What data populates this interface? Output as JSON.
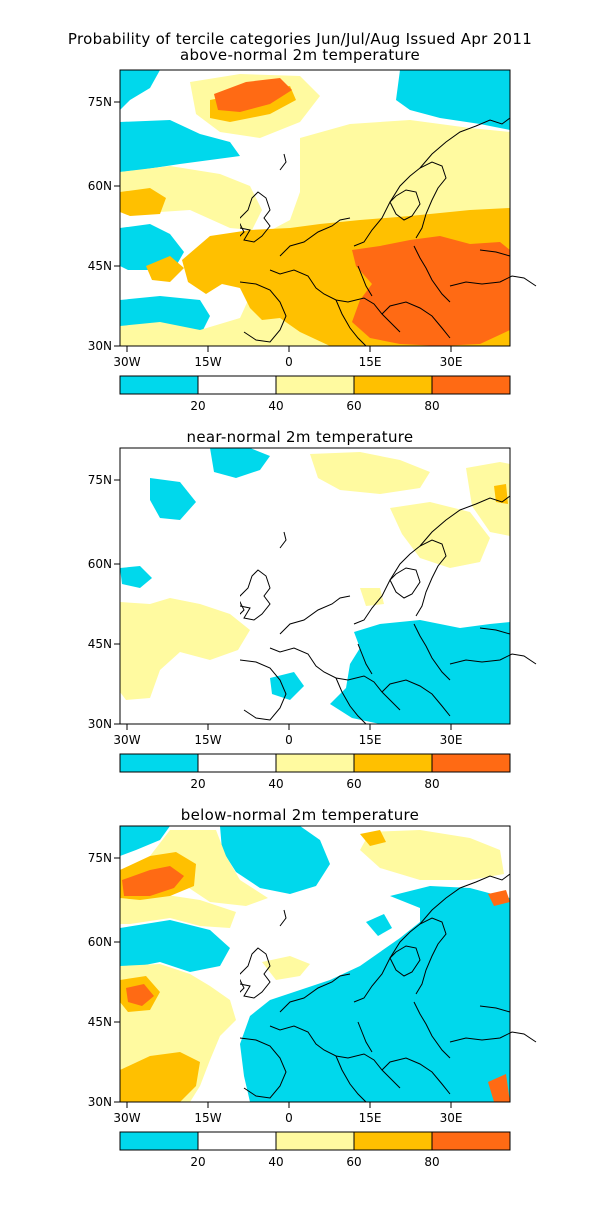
{
  "header": {
    "title_line1": "Probability of tercile categories Jun/Jul/Aug Issued Apr 2011",
    "title_line2": "above-normal 2m temperature"
  },
  "panels": [
    {
      "id": "above",
      "subtitle": "",
      "lat_labels": [
        "75N",
        "60N",
        "45N",
        "30N"
      ],
      "lon_labels": [
        "30W",
        "15W",
        "0",
        "15E",
        "30E"
      ],
      "dominant_category": "above-normal"
    },
    {
      "id": "near",
      "subtitle": "near-normal 2m temperature",
      "lat_labels": [
        "75N",
        "60N",
        "45N",
        "30N"
      ],
      "lon_labels": [
        "30W",
        "15W",
        "0",
        "15E",
        "30E"
      ],
      "dominant_category": "near-normal"
    },
    {
      "id": "below",
      "subtitle": "below-normal 2m temperature",
      "lat_labels": [
        "75N",
        "60N",
        "45N",
        "30N"
      ],
      "lon_labels": [
        "30W",
        "15W",
        "0",
        "15E",
        "30E"
      ],
      "dominant_category": "below-normal"
    }
  ],
  "colorbar": {
    "tick_labels": [
      "20",
      "40",
      "60",
      "80"
    ],
    "bins": [
      {
        "range": "0-20",
        "color": "#00d8ec"
      },
      {
        "range": "20-40",
        "color": "#ffffff"
      },
      {
        "range": "40-60",
        "color": "#fffaa0"
      },
      {
        "range": "60-80",
        "color": "#ffc000"
      },
      {
        "range": "80-100",
        "color": "#ff6a14"
      }
    ]
  },
  "colors": {
    "cyan": "#00d8ec",
    "white": "#ffffff",
    "yellow": "#fffaa0",
    "orange": "#ffc000",
    "red": "#ff6a14"
  }
}
